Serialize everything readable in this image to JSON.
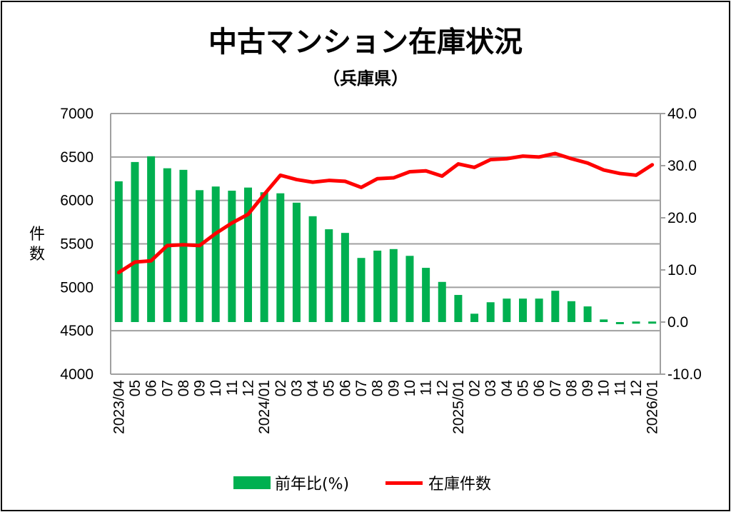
{
  "chart_data": {
    "type": "bar+line",
    "title": "中古マンション在庫状況",
    "subtitle": "（兵庫県）",
    "ylabel": "件\n数",
    "categories": [
      "2023/04",
      "05",
      "06",
      "07",
      "08",
      "09",
      "10",
      "11",
      "12",
      "2024/01",
      "02",
      "03",
      "04",
      "05",
      "06",
      "07",
      "08",
      "09",
      "10",
      "11",
      "12",
      "2025/01",
      "02",
      "03",
      "04",
      "05",
      "06",
      "07",
      "08",
      "09",
      "10",
      "11",
      "12",
      "2026/01"
    ],
    "left_axis": {
      "range": [
        4000,
        7000
      ],
      "ticks": [
        "7000",
        "6500",
        "6000",
        "5500",
        "5000",
        "4500",
        "4000"
      ]
    },
    "right_axis": {
      "range": [
        -10,
        40
      ],
      "ticks": [
        "40.0",
        "30.0",
        "20.0",
        "10.0",
        "0.0",
        "-10.0"
      ],
      "negative_color": "#ff0000"
    },
    "series": [
      {
        "name": "前年比(%)",
        "type": "bar",
        "axis": "right",
        "color": "#00b050",
        "values": [
          27.0,
          30.7,
          31.8,
          29.5,
          29.2,
          25.3,
          26.0,
          25.2,
          25.8,
          24.9,
          24.7,
          22.9,
          20.3,
          17.8,
          17.1,
          12.3,
          13.7,
          14.0,
          12.7,
          10.4,
          7.7,
          5.2,
          1.6,
          3.8,
          4.5,
          4.5,
          4.5,
          6.0,
          4.0,
          3.0,
          0.5,
          -0.3,
          0.1,
          0.1
        ]
      },
      {
        "name": "在庫件数",
        "type": "line",
        "axis": "left",
        "color": "#ff0000",
        "values": [
          5170,
          5290,
          5305,
          5480,
          5490,
          5480,
          5620,
          5740,
          5840,
          6070,
          6290,
          6240,
          6210,
          6230,
          6220,
          6150,
          6250,
          6260,
          6330,
          6340,
          6280,
          6420,
          6380,
          6470,
          6480,
          6510,
          6500,
          6540,
          6480,
          6430,
          6350,
          6310,
          6290,
          6410
        ]
      }
    ],
    "legend": {
      "placement": "bottom",
      "items": [
        "前年比(%)",
        "在庫件数"
      ]
    },
    "grid": true
  }
}
